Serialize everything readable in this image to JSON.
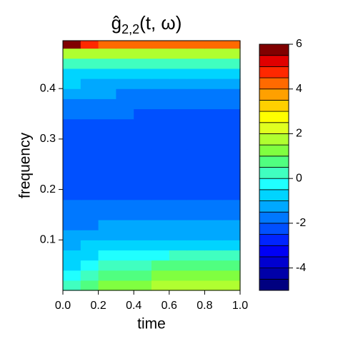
{
  "chart_data": {
    "type": "filled-contour",
    "title": [
      "ĝ",
      "2,2",
      "(t, ω)"
    ],
    "x_label": "time",
    "y_label": "frequency",
    "xlim": [
      0,
      1
    ],
    "ylim": [
      0,
      0.495
    ],
    "xticks": [
      {
        "value": 0,
        "label": "0.0"
      },
      {
        "value": 0.2,
        "label": "0.2"
      },
      {
        "value": 0.4,
        "label": "0.4"
      },
      {
        "value": 0.6,
        "label": "0.6"
      },
      {
        "value": 0.8,
        "label": "0.8"
      },
      {
        "value": 1,
        "label": "1.0"
      }
    ],
    "yticks": [
      0.1,
      0.2,
      0.3,
      0.4
    ],
    "x": [
      0.05,
      0.15,
      0.25,
      0.35,
      0.45,
      0.55,
      0.65,
      0.75,
      0.85,
      0.95
    ],
    "y": [
      0.01,
      0.03,
      0.05,
      0.07,
      0.09,
      0.11,
      0.13,
      0.15,
      0.17,
      0.19,
      0.21,
      0.23,
      0.25,
      0.27,
      0.29,
      0.31,
      0.33,
      0.35,
      0.37,
      0.39,
      0.41,
      0.43,
      0.45,
      0.47,
      0.49
    ],
    "z": [
      [
        0.3,
        0.8,
        1.0,
        1.2,
        1.4,
        1.5,
        1.6,
        1.6,
        1.7,
        1.7
      ],
      [
        -0.2,
        0.4,
        0.6,
        0.8,
        0.9,
        1.0,
        1.1,
        1.1,
        1.2,
        1.2
      ],
      [
        -0.6,
        -0.2,
        0.1,
        0.3,
        0.4,
        0.5,
        0.5,
        0.6,
        0.6,
        0.6
      ],
      [
        -0.9,
        -0.6,
        -0.4,
        -0.3,
        -0.2,
        -0.1,
        0,
        0,
        0,
        0
      ],
      [
        -1.2,
        -1,
        -0.9,
        -0.8,
        -0.7,
        -0.7,
        -0.6,
        -0.6,
        -0.6,
        -0.6
      ],
      [
        -1.5,
        -1.3,
        -1.2,
        -1.2,
        -1.1,
        -1.1,
        -1.1,
        -1.1,
        -1.1,
        -1.1
      ],
      [
        -1.7,
        -1.6,
        -1.5,
        -1.5,
        -1.5,
        -1.5,
        -1.5,
        -1.5,
        -1.5,
        -1.5
      ],
      [
        -1.8,
        -1.8,
        -1.8,
        -1.7,
        -1.7,
        -1.7,
        -1.7,
        -1.7,
        -1.7,
        -1.7
      ],
      [
        -1.9,
        -1.9,
        -1.9,
        -1.9,
        -1.9,
        -1.9,
        -1.9,
        -1.9,
        -1.9,
        -1.9
      ],
      [
        -2.1,
        -2.1,
        -2.1,
        -2.1,
        -2.1,
        -2.1,
        -2.1,
        -2.1,
        -2.1,
        -2.1
      ],
      [
        -2.1,
        -2.1,
        -2.1,
        -2.1,
        -2.1,
        -2.1,
        -2.1,
        -2.1,
        -2.1,
        -2.1
      ],
      [
        -2.1,
        -2.1,
        -2.1,
        -2.1,
        -2.1,
        -2.1,
        -2.1,
        -2.1,
        -2.1,
        -2.1
      ],
      [
        -2.1,
        -2.1,
        -2.1,
        -2.1,
        -2.1,
        -2.1,
        -2.1,
        -2.1,
        -2.1,
        -2.1
      ],
      [
        -2.1,
        -2.1,
        -2.1,
        -2.1,
        -2.1,
        -2.1,
        -2.1,
        -2.1,
        -2.1,
        -2.1
      ],
      [
        -2.1,
        -2.1,
        -2.1,
        -2.1,
        -2.1,
        -2.1,
        -2.1,
        -2.1,
        -2.1,
        -2.1
      ],
      [
        -2.1,
        -2.1,
        -2.1,
        -2.1,
        -2.1,
        -2.1,
        -2.1,
        -2.1,
        -2.1,
        -2.1
      ],
      [
        -2.1,
        -2.1,
        -2.1,
        -2.1,
        -2.1,
        -2.1,
        -2.1,
        -2.1,
        -2.1,
        -2.1
      ],
      [
        -1.9,
        -1.9,
        -2.0,
        -2.0,
        -2.1,
        -2.1,
        -2.1,
        -2.1,
        -2.1,
        -2.1
      ],
      [
        -1.7,
        -1.7,
        -1.8,
        -1.8,
        -1.9,
        -1.9,
        -1.9,
        -1.9,
        -1.9,
        -1.9
      ],
      [
        -1.4,
        -1.5,
        -1.5,
        -1.6,
        -1.6,
        -1.6,
        -1.6,
        -1.6,
        -1.6,
        -1.6
      ],
      [
        -1.0,
        -1.1,
        -1.2,
        -1.2,
        -1.2,
        -1.2,
        -1.2,
        -1.2,
        -1.2,
        -1.2
      ],
      [
        -0.6,
        -0.7,
        -0.7,
        -0.8,
        -0.8,
        -0.8,
        -0.8,
        -0.8,
        -0.8,
        -0.8
      ],
      [
        0.3,
        0,
        0,
        0,
        0,
        0,
        0,
        0,
        0,
        0
      ],
      [
        1.8,
        1.5,
        1.5,
        1.5,
        1.5,
        1.5,
        1.5,
        1.5,
        1.5,
        1.5
      ],
      [
        5.5,
        4.5,
        4.2,
        4,
        4,
        4,
        4,
        4,
        4,
        4
      ]
    ],
    "zlim": [
      -5,
      6
    ],
    "zticks": [
      -4,
      -2,
      0,
      2,
      4,
      6
    ],
    "colors": [
      "#000080",
      "#0000A8",
      "#0000D0",
      "#0000F5",
      "#0024FF",
      "#0050FF",
      "#0078FF",
      "#00A8FF",
      "#00D4FF",
      "#20FFFF",
      "#40FFC0",
      "#50FF80",
      "#80FF40",
      "#B0FF30",
      "#E0FF20",
      "#FFFF00",
      "#FFD000",
      "#FFA000",
      "#FF6A00",
      "#FF2800",
      "#E00000",
      "#800000"
    ]
  }
}
